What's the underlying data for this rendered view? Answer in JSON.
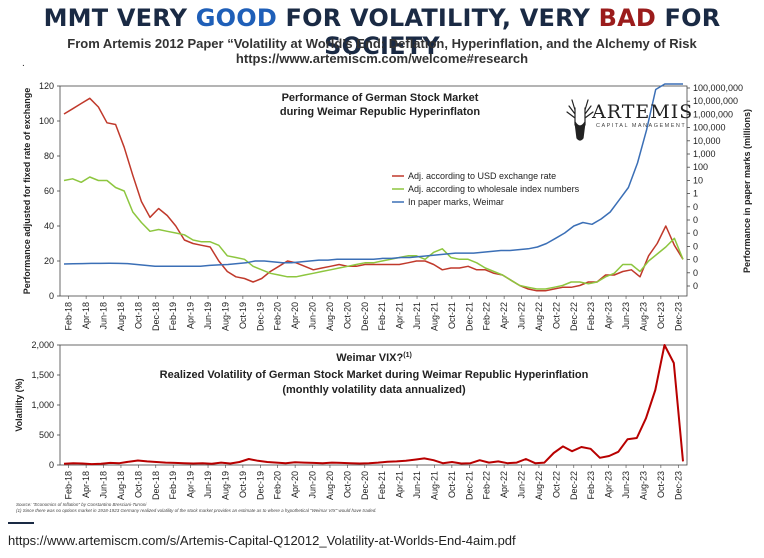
{
  "header": {
    "headline_part1": "MMT VERY ",
    "headline_good": "GOOD",
    "headline_part2": " FOR VOLATILITY, VERY ",
    "headline_bad": "BAD",
    "headline_part3": " FOR SOCIETY",
    "subtitle": "From Artemis 2012 Paper “Volatility at World’s End: Deflation, Hyperinflation, and the Alchemy of Risk",
    "url": "https://www.artemiscm.com/welcome#research",
    "dot": "."
  },
  "logo": {
    "name": "ARTEMIS",
    "sub": "CAPITAL MANAGEMENT"
  },
  "footer": {
    "url": "https://www.artemiscm.com/s/Artemis-Capital-Q12012_Volatility-at-Worlds-End-4aim.pdf"
  },
  "notes": {
    "source": "Source: \"Economics of Inflation\" by Constantino Bresciani-Turroni",
    "note": "(1)    Since there was no options market in 1918-1923  Germany  realized volatility of the stock market provides an estimate as to where a hypothetical \"Weimar VIX\" would have traded."
  },
  "colors": {
    "red": "#c0392b",
    "green": "#8dc63f",
    "blue": "#3b6fb6",
    "darkred": "#b80000"
  },
  "chart_data": [
    {
      "type": "line",
      "title_line1": "Performance of German Stock Market",
      "title_line2": "during Weimar Republic Hyperinflaton",
      "ylabel": "Performance adjusted for fixed rate of exchange",
      "y2label": "Performance in paper marks (millions)",
      "ylim": [
        0,
        120
      ],
      "yticks": [
        "0",
        "20",
        "40",
        "60",
        "80",
        "100",
        "120"
      ],
      "y2_scale": "log",
      "y2ticks": [
        "0",
        "0",
        "0",
        "0",
        "0",
        "0",
        "0",
        "1",
        "10",
        "100",
        "1,000",
        "10,000",
        "100,000",
        "1,000,000",
        "10,000,000",
        "100,000,000"
      ],
      "x_tick_labels": [
        "Feb-18",
        "Apr-18",
        "Jun-18",
        "Aug-18",
        "Oct-18",
        "Dec-18",
        "Feb-19",
        "Apr-19",
        "Jun-19",
        "Aug-19",
        "Oct-19",
        "Dec-19",
        "Feb-20",
        "Apr-20",
        "Jun-20",
        "Aug-20",
        "Oct-20",
        "Dec-20",
        "Feb-21",
        "Apr-21",
        "Jun-21",
        "Aug-21",
        "Oct-21",
        "Dec-21",
        "Feb-22",
        "Apr-22",
        "Jun-22",
        "Aug-22",
        "Oct-22",
        "Dec-22",
        "Feb-23",
        "Apr-23",
        "Jun-23",
        "Aug-23",
        "Oct-23",
        "Dec-23"
      ],
      "legend_position": "center-right",
      "series": [
        {
          "name": "Adj. according to USD exchange rate",
          "color": "#c0392b",
          "values": [
            104,
            107,
            110,
            113,
            108,
            99,
            98,
            85,
            69,
            54,
            45,
            50,
            46,
            40,
            32,
            30,
            29,
            28,
            20,
            14,
            11,
            10,
            8,
            10,
            14,
            17,
            20,
            19,
            17,
            15,
            16,
            17,
            18,
            17,
            17,
            18,
            18,
            18,
            18,
            18,
            19,
            20,
            20,
            18,
            15,
            16,
            16,
            17,
            15,
            15,
            13,
            12,
            9,
            6,
            4,
            3,
            3,
            4,
            5,
            5,
            6,
            8,
            8,
            12,
            12,
            14,
            15,
            11,
            23,
            30,
            40,
            29,
            21
          ]
        },
        {
          "name": "Adj. according to wholesale index numbers",
          "color": "#8dc63f",
          "values": [
            66,
            67,
            65,
            68,
            66,
            66,
            62,
            60,
            48,
            42,
            37,
            38,
            37,
            36,
            35,
            32,
            31,
            31,
            29,
            23,
            22,
            21,
            17,
            15,
            13,
            12,
            11,
            11,
            12,
            13,
            14,
            15,
            16,
            17,
            18,
            19,
            19,
            20,
            21,
            22,
            23,
            23,
            21,
            25,
            27,
            22,
            21,
            21,
            19,
            16,
            14,
            12,
            9,
            6,
            5,
            4,
            4,
            5,
            6,
            8,
            8,
            7,
            8,
            11,
            13,
            18,
            18,
            14,
            20,
            24,
            28,
            33,
            21
          ]
        },
        {
          "name": "In paper marks, Weimar",
          "color": "#3b6fb6",
          "values": [
            18.3,
            18.4,
            18.5,
            18.6,
            18.6,
            18.7,
            18.6,
            18.5,
            18.0,
            17.5,
            17.0,
            17.0,
            17.0,
            17.0,
            17.0,
            17.0,
            17.5,
            17.8,
            18.0,
            18.5,
            19.0,
            20,
            20,
            19.5,
            19,
            19,
            19.5,
            20,
            20.5,
            20.5,
            21,
            21,
            21,
            21,
            21,
            21.5,
            21.5,
            22,
            22,
            22.5,
            23,
            23.5,
            24,
            24.5,
            24.5,
            24.5,
            25,
            25.5,
            26,
            26,
            26.5,
            27,
            28,
            30,
            33,
            36,
            40,
            42,
            41,
            44,
            48,
            55,
            62,
            76,
            95,
            118,
            140,
            152,
            154
          ]
        }
      ]
    },
    {
      "type": "line",
      "title_line1": "Weimar VIX?",
      "title_sup": "(1)",
      "title_line2": "Realized Volatility of German Stock Market during Weimar Republic Hyperinflation",
      "title_line3": "(monthly volatility data annualized)",
      "ylabel": "Volatility (%)",
      "ylim": [
        0,
        2000
      ],
      "yticks": [
        "0",
        "500",
        "1,000",
        "1,500",
        "2,000"
      ],
      "x_tick_labels": [
        "Feb-18",
        "Apr-18",
        "Jun-18",
        "Aug-18",
        "Oct-18",
        "Dec-18",
        "Feb-19",
        "Apr-19",
        "Jun-19",
        "Aug-19",
        "Oct-19",
        "Dec-19",
        "Feb-20",
        "Apr-20",
        "Jun-20",
        "Aug-20",
        "Oct-20",
        "Dec-20",
        "Feb-21",
        "Apr-21",
        "Jun-21",
        "Aug-21",
        "Oct-21",
        "Dec-21",
        "Feb-22",
        "Apr-22",
        "Jun-22",
        "Aug-22",
        "Oct-22",
        "Dec-22",
        "Feb-23",
        "Apr-23",
        "Jun-23",
        "Aug-23",
        "Oct-23",
        "Dec-23"
      ],
      "series": [
        {
          "name": "Realized volatility",
          "color": "#b80000",
          "values": [
            20,
            30,
            25,
            15,
            20,
            35,
            30,
            55,
            75,
            60,
            50,
            40,
            35,
            30,
            25,
            30,
            20,
            40,
            25,
            50,
            100,
            70,
            50,
            40,
            30,
            45,
            40,
            35,
            30,
            40,
            35,
            30,
            25,
            30,
            40,
            55,
            60,
            70,
            90,
            110,
            80,
            30,
            50,
            25,
            30,
            80,
            40,
            60,
            30,
            40,
            100,
            30,
            40,
            200,
            310,
            230,
            300,
            270,
            120,
            150,
            220,
            430,
            450,
            780,
            1250,
            2000,
            1700,
            60
          ]
        }
      ]
    }
  ]
}
